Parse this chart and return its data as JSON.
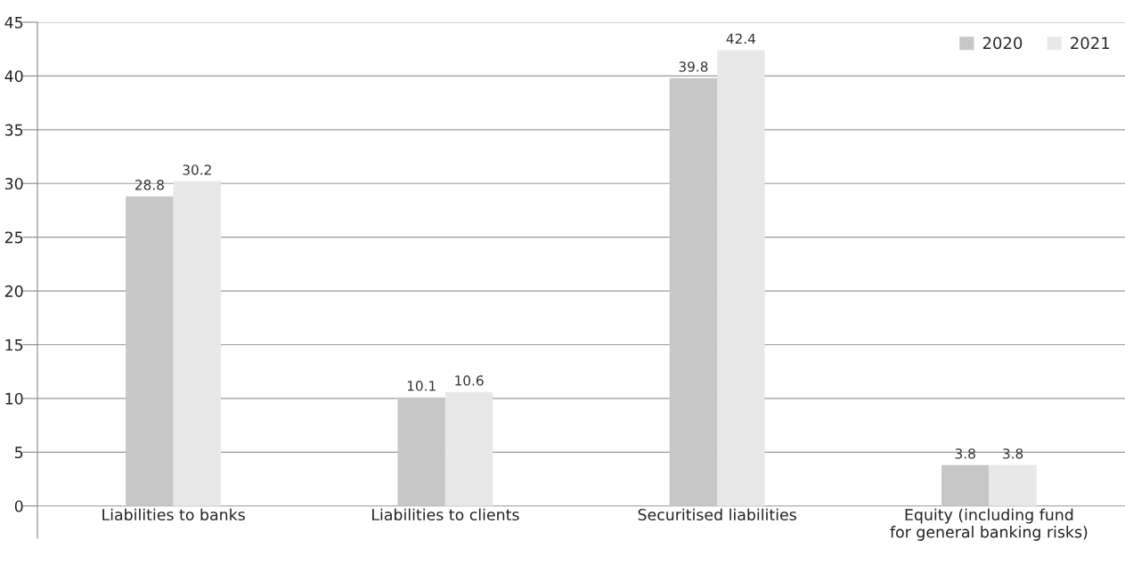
{
  "chart_data": {
    "type": "bar",
    "categories": [
      "Liabilities to banks",
      "Liabilities to clients",
      "Securitised liabilities",
      "Equity (including fund\nfor general banking risks)"
    ],
    "series": [
      {
        "name": "2020",
        "color": "#c6c7c6",
        "values": [
          28.8,
          10.1,
          39.8,
          3.8
        ]
      },
      {
        "name": "2021",
        "color": "#e8e8e8",
        "values": [
          30.2,
          10.6,
          42.4,
          3.8
        ]
      }
    ],
    "ylim": [
      -3,
      45
    ],
    "yticks": [
      0,
      5,
      10,
      15,
      20,
      25,
      30,
      35,
      40,
      45
    ],
    "grid": "y",
    "legend": "top right",
    "data_labels": true
  }
}
